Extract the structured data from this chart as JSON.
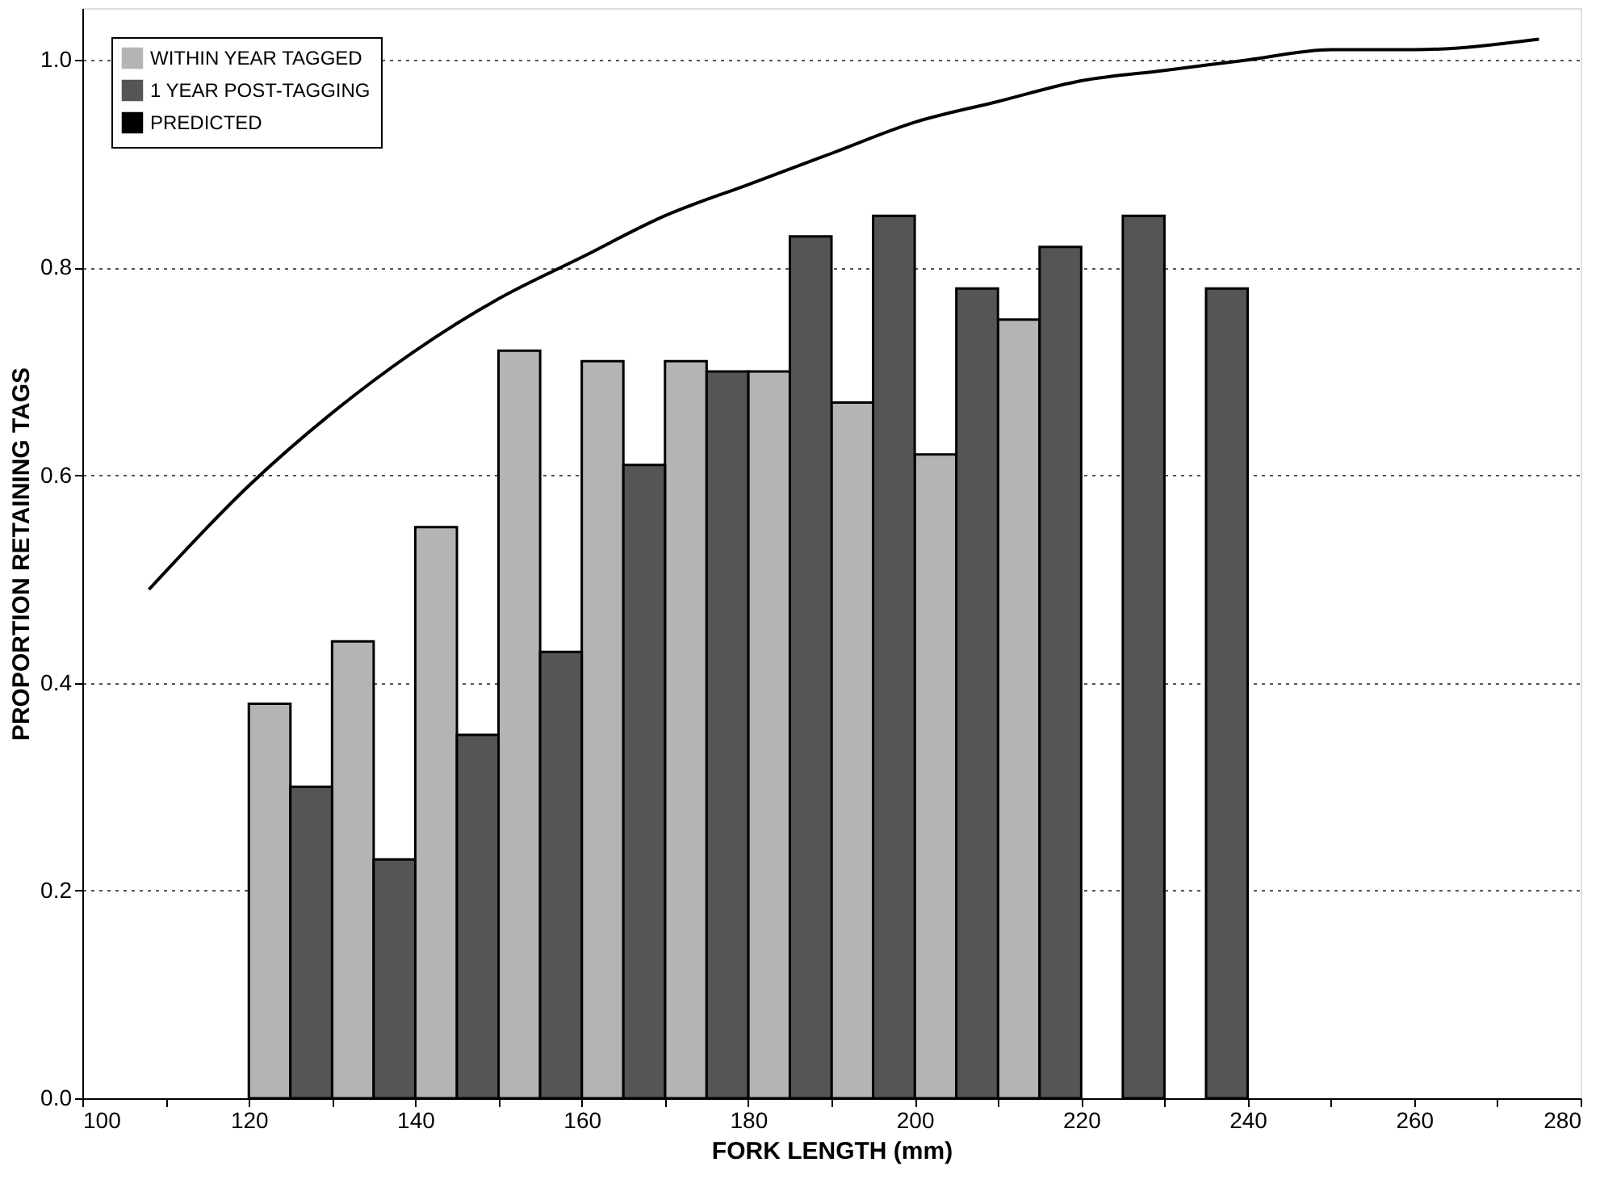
{
  "chart_data": {
    "type": "bar",
    "xlabel": "FORK LENGTH (mm)",
    "ylabel": "PROPORTION RETAINING TAGS",
    "xlim": [
      100,
      280
    ],
    "ylim": [
      0,
      1.05
    ],
    "xticks": [
      100,
      {
        "value": 110,
        "label": null
      },
      120,
      {
        "value": 130,
        "label": null
      },
      140,
      {
        "value": 150,
        "label": null
      },
      160,
      {
        "value": 170,
        "label": null
      },
      180,
      {
        "value": 190,
        "label": null
      },
      200,
      {
        "value": 210,
        "label": null
      },
      220,
      {
        "value": 230,
        "label": null
      },
      240,
      {
        "value": 250,
        "label": null
      },
      260,
      {
        "value": 270,
        "label": null
      },
      280
    ],
    "yticks": [
      {
        "value": 0,
        "label": "0.0"
      },
      0.2,
      0.4,
      0.6,
      0.8,
      {
        "value": 1,
        "label": "1.0"
      }
    ],
    "grid": "y",
    "legend": "top left",
    "series": [
      {
        "name": "WITHIN YEAR TAGGED",
        "color": "#b4b4b4",
        "x": [
          120,
          130,
          140,
          150,
          160,
          170,
          180,
          190,
          200,
          210
        ],
        "values": [
          0.38,
          0.44,
          0.55,
          0.72,
          0.71,
          0.71,
          0.7,
          0.67,
          0.62,
          0.75
        ]
      },
      {
        "name": "1 YEAR POST-TAGGING",
        "color": "#555555",
        "x": [
          125,
          135,
          145,
          155,
          165,
          175,
          185,
          195,
          205,
          215,
          225,
          235
        ],
        "values": [
          0.3,
          0.23,
          0.35,
          0.43,
          0.61,
          0.7,
          0.83,
          0.85,
          0.78,
          0.82,
          0.85,
          0.78
        ]
      },
      {
        "name": "PREDICTED",
        "type": "line",
        "color": "#000000",
        "x": [
          108,
          120,
          130,
          140,
          150,
          160,
          170,
          180,
          190,
          200,
          210,
          220,
          230,
          240,
          250,
          260,
          275
        ],
        "values": [
          0.49,
          0.59,
          0.66,
          0.72,
          0.77,
          0.81,
          0.85,
          0.88,
          0.91,
          0.94,
          0.96,
          0.98,
          0.99,
          1.0,
          1.01,
          1.01,
          1.02
        ]
      }
    ]
  }
}
